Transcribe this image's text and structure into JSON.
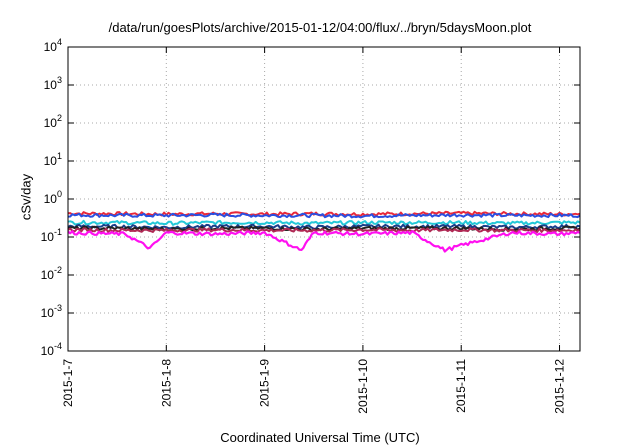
{
  "chart_data": {
    "type": "line",
    "title": "/data/run/goesPlots/archive/2015-01-12/04:00/flux/../bryn/5daysMoon.plot",
    "xlabel": "Coordinated Universal Time (UTC)",
    "ylabel": "cSv/day",
    "yscale": "log",
    "ylim": [
      0.0001,
      10000
    ],
    "y_ticks": [
      {
        "base": "10",
        "exp": "4"
      },
      {
        "base": "10",
        "exp": "3"
      },
      {
        "base": "10",
        "exp": "2"
      },
      {
        "base": "10",
        "exp": "1"
      },
      {
        "base": "10",
        "exp": "0"
      },
      {
        "base": "10",
        "exp": "-1"
      },
      {
        "base": "10",
        "exp": "-2"
      },
      {
        "base": "10",
        "exp": "-3"
      },
      {
        "base": "10",
        "exp": "-4"
      }
    ],
    "x_ticks": [
      "2015-1-7",
      "2015-1-8",
      "2015-1-9",
      "2015-1-10",
      "2015-1-11",
      "2015-1-12"
    ],
    "xlim": [
      "2015-01-07T00:00",
      "2015-01-12T05:00"
    ],
    "grid": true,
    "series": [
      {
        "color": "#e8283a",
        "x": [
          "2015-01-07T00:00",
          "2015-01-07T12:00",
          "2015-01-08T00:00",
          "2015-01-08T12:00",
          "2015-01-09T00:00",
          "2015-01-09T12:00",
          "2015-01-10T00:00",
          "2015-01-10T12:00",
          "2015-01-11T00:00",
          "2015-01-11T12:00",
          "2015-01-12T00:00",
          "2015-01-12T05:00"
        ],
        "y": [
          0.42,
          0.41,
          0.4,
          0.41,
          0.4,
          0.41,
          0.4,
          0.41,
          0.42,
          0.41,
          0.4,
          0.41
        ]
      },
      {
        "color": "#2a4fe0",
        "x": [
          "2015-01-07T00:00",
          "2015-01-07T12:00",
          "2015-01-08T00:00",
          "2015-01-08T12:00",
          "2015-01-09T00:00",
          "2015-01-09T12:00",
          "2015-01-10T00:00",
          "2015-01-10T12:00",
          "2015-01-11T00:00",
          "2015-01-11T12:00",
          "2015-01-12T00:00",
          "2015-01-12T05:00"
        ],
        "y": [
          0.38,
          0.37,
          0.37,
          0.38,
          0.37,
          0.37,
          0.36,
          0.37,
          0.38,
          0.37,
          0.37,
          0.37
        ]
      },
      {
        "color": "#24c8d8",
        "x": [
          "2015-01-07T00:00",
          "2015-01-07T12:00",
          "2015-01-08T00:00",
          "2015-01-08T12:00",
          "2015-01-09T00:00",
          "2015-01-09T12:00",
          "2015-01-10T00:00",
          "2015-01-10T12:00",
          "2015-01-11T00:00",
          "2015-01-11T12:00",
          "2015-01-12T00:00",
          "2015-01-12T05:00"
        ],
        "y": [
          0.24,
          0.24,
          0.23,
          0.24,
          0.24,
          0.23,
          0.24,
          0.24,
          0.24,
          0.23,
          0.24,
          0.24
        ]
      },
      {
        "color": "#1a3e8a",
        "x": [
          "2015-01-07T00:00",
          "2015-01-07T12:00",
          "2015-01-08T00:00",
          "2015-01-08T12:00",
          "2015-01-09T00:00",
          "2015-01-09T12:00",
          "2015-01-10T00:00",
          "2015-01-10T12:00",
          "2015-01-11T00:00",
          "2015-01-11T12:00",
          "2015-01-12T00:00",
          "2015-01-12T05:00"
        ],
        "y": [
          0.19,
          0.19,
          0.18,
          0.19,
          0.19,
          0.18,
          0.19,
          0.19,
          0.19,
          0.18,
          0.19,
          0.19
        ]
      },
      {
        "color": "#222222",
        "x": [
          "2015-01-07T00:00",
          "2015-01-07T12:00",
          "2015-01-08T00:00",
          "2015-01-08T12:00",
          "2015-01-09T00:00",
          "2015-01-09T12:00",
          "2015-01-10T00:00",
          "2015-01-10T12:00",
          "2015-01-11T00:00",
          "2015-01-11T12:00",
          "2015-01-12T00:00",
          "2015-01-12T05:00"
        ],
        "y": [
          0.17,
          0.17,
          0.16,
          0.17,
          0.17,
          0.16,
          0.17,
          0.17,
          0.17,
          0.16,
          0.17,
          0.17
        ]
      },
      {
        "color": "#b02a55",
        "x": [
          "2015-01-07T00:00",
          "2015-01-07T12:00",
          "2015-01-08T00:00",
          "2015-01-08T12:00",
          "2015-01-09T00:00",
          "2015-01-09T12:00",
          "2015-01-10T00:00",
          "2015-01-10T12:00",
          "2015-01-11T00:00",
          "2015-01-11T12:00",
          "2015-01-12T00:00",
          "2015-01-12T05:00"
        ],
        "y": [
          0.155,
          0.15,
          0.15,
          0.155,
          0.15,
          0.15,
          0.155,
          0.15,
          0.155,
          0.15,
          0.15,
          0.155
        ]
      },
      {
        "color": "#ff10f0",
        "x": [
          "2015-01-07T00:00",
          "2015-01-07T14:00",
          "2015-01-07T20:00",
          "2015-01-08T00:00",
          "2015-01-08T12:00",
          "2015-01-09T00:00",
          "2015-01-09T09:00",
          "2015-01-09T12:00",
          "2015-01-10T00:00",
          "2015-01-10T12:00",
          "2015-01-10T20:00",
          "2015-01-11T00:00",
          "2015-01-11T12:00",
          "2015-01-12T00:00",
          "2015-01-12T05:00"
        ],
        "y": [
          0.13,
          0.12,
          0.05,
          0.13,
          0.12,
          0.13,
          0.045,
          0.13,
          0.12,
          0.13,
          0.045,
          0.06,
          0.13,
          0.12,
          0.13
        ]
      }
    ]
  }
}
